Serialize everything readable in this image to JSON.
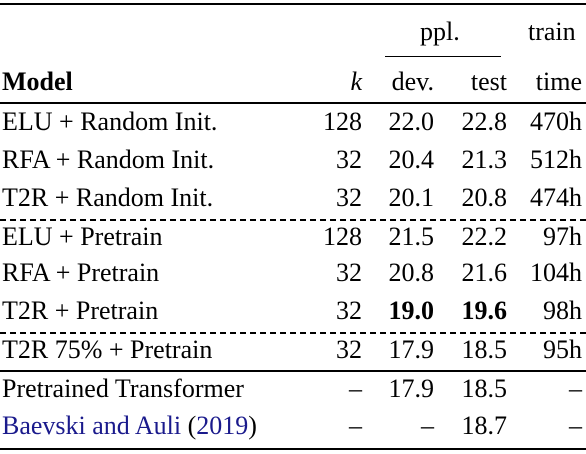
{
  "header": {
    "ppl": "ppl.",
    "train": "train",
    "model": "Model",
    "k": "k",
    "dev": "dev.",
    "test": "test",
    "time": "time"
  },
  "rows": [
    {
      "model": "ELU + Random Init.",
      "k": "128",
      "dev": "22.0",
      "test": "22.8",
      "time": "470h"
    },
    {
      "model": "RFA + Random Init.",
      "k": "32",
      "dev": "20.4",
      "test": "21.3",
      "time": "512h"
    },
    {
      "model": "T2R + Random Init.",
      "k": "32",
      "dev": "20.1",
      "test": "20.8",
      "time": "474h"
    },
    {
      "model": "ELU + Pretrain",
      "k": "128",
      "dev": "21.5",
      "test": "22.2",
      "time": "97h"
    },
    {
      "model": "RFA + Pretrain",
      "k": "32",
      "dev": "20.8",
      "test": "21.6",
      "time": "104h"
    },
    {
      "model": "T2R + Pretrain",
      "k": "32",
      "dev": "19.0",
      "test": "19.6",
      "time": "98h"
    },
    {
      "model": "T2R 75% + Pretrain",
      "k": "32",
      "dev": "17.9",
      "test": "18.5",
      "time": "95h"
    },
    {
      "model": "Pretrained Transformer",
      "k": "–",
      "dev": "17.9",
      "test": "18.5",
      "time": "–"
    },
    {
      "model_cite_a": "Baevski and Auli",
      "model_cite_b": "2019",
      "k": "–",
      "dev": "–",
      "test": "18.7",
      "time": "–"
    }
  ]
}
